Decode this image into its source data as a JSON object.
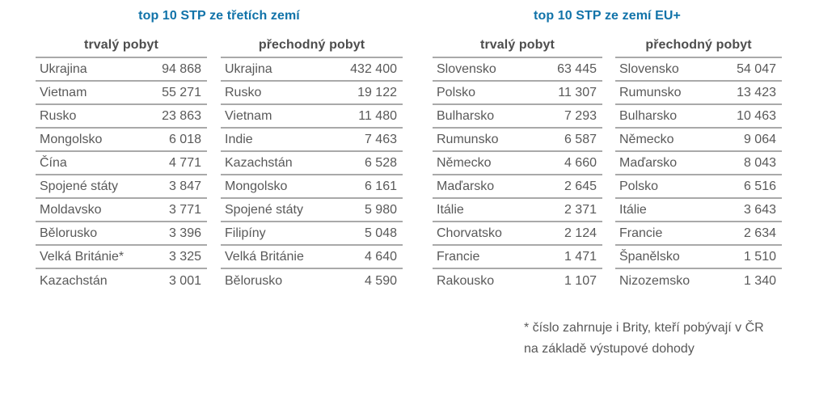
{
  "colors": {
    "title_blue": "#1173a9",
    "header_text": "#4d4d4d",
    "body_text": "#595959",
    "separator_line": "#a9a9a9",
    "background": "#ffffff"
  },
  "sections": [
    {
      "title": "top 10 STP ze třetích zemí",
      "tables": [
        {
          "header": "trvalý pobyt",
          "rows": [
            [
              "Ukrajina",
              "94 868"
            ],
            [
              "Vietnam",
              "55 271"
            ],
            [
              "Rusko",
              "23 863"
            ],
            [
              "Mongolsko",
              "6 018"
            ],
            [
              "Čína",
              "4 771"
            ],
            [
              "Spojené státy",
              "3 847"
            ],
            [
              "Moldavsko",
              "3 771"
            ],
            [
              "Bělorusko",
              "3 396"
            ],
            [
              "Velká Británie*",
              "3 325"
            ],
            [
              "Kazachstán",
              "3 001"
            ]
          ]
        },
        {
          "header": "přechodný pobyt",
          "rows": [
            [
              "Ukrajina",
              "432 400"
            ],
            [
              "Rusko",
              "19 122"
            ],
            [
              "Vietnam",
              "11 480"
            ],
            [
              "Indie",
              "7 463"
            ],
            [
              "Kazachstán",
              "6 528"
            ],
            [
              "Mongolsko",
              "6 161"
            ],
            [
              "Spojené státy",
              "5 980"
            ],
            [
              "Filipíny",
              "5 048"
            ],
            [
              "Velká Británie",
              "4 640"
            ],
            [
              "Bělorusko",
              "4 590"
            ]
          ]
        }
      ]
    },
    {
      "title": "top 10 STP ze zemí EU+",
      "tables": [
        {
          "header": "trvalý pobyt",
          "rows": [
            [
              "Slovensko",
              "63 445"
            ],
            [
              "Polsko",
              "11 307"
            ],
            [
              "Bulharsko",
              "7 293"
            ],
            [
              "Rumunsko",
              "6 587"
            ],
            [
              "Německo",
              "4 660"
            ],
            [
              "Maďarsko",
              "2 645"
            ],
            [
              "Itálie",
              "2 371"
            ],
            [
              "Chorvatsko",
              "2 124"
            ],
            [
              "Francie",
              "1 471"
            ],
            [
              "Rakousko",
              "1 107"
            ]
          ]
        },
        {
          "header": "přechodný pobyt",
          "rows": [
            [
              "Slovensko",
              "54 047"
            ],
            [
              "Rumunsko",
              "13 423"
            ],
            [
              "Bulharsko",
              "10 463"
            ],
            [
              "Německo",
              "9 064"
            ],
            [
              "Maďarsko",
              "8 043"
            ],
            [
              "Polsko",
              "6 516"
            ],
            [
              "Itálie",
              "3 643"
            ],
            [
              "Francie",
              "2 634"
            ],
            [
              "Španělsko",
              "1 510"
            ],
            [
              "Nizozemsko",
              "1 340"
            ]
          ]
        }
      ]
    }
  ],
  "footnote": {
    "line1": "* číslo zahrnuje i Brity, kteří pobývají v ČR",
    "line2": "na základě výstupové dohody"
  }
}
